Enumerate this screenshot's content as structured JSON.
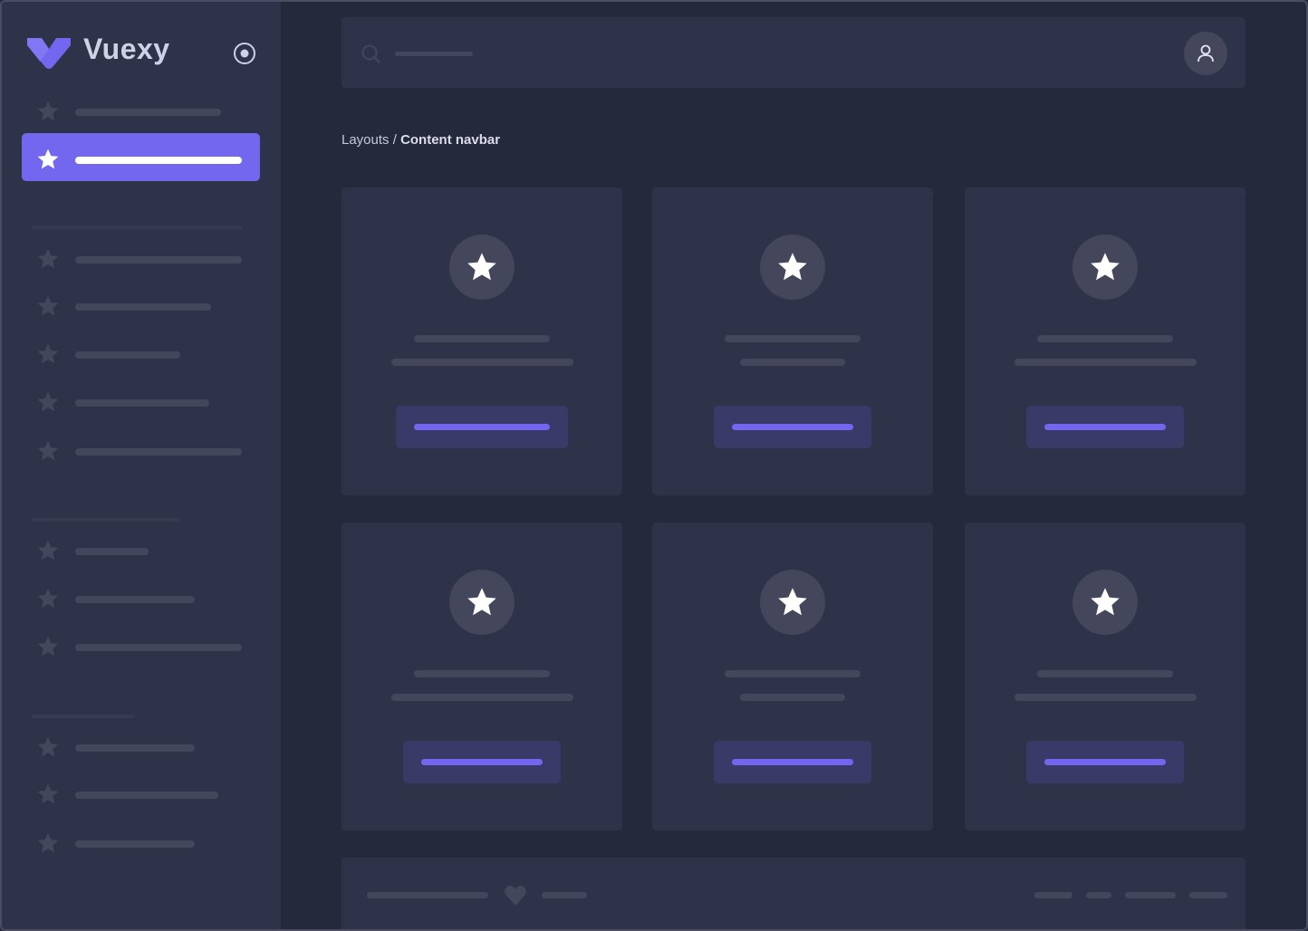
{
  "sidebar": {
    "brand": "Vuexy",
    "logo_icon": "vuexy-logo",
    "toggle_icon": "radio-circle-icon",
    "nav_icon": "star-icon",
    "active_index": 1
  },
  "header": {
    "search_icon": "search-icon",
    "avatar_icon": "user-icon"
  },
  "breadcrumb": {
    "parent": "Layouts",
    "separator": " / ",
    "current": "Content navbar"
  },
  "cards": [
    {
      "icon": "star-icon"
    },
    {
      "icon": "star-icon"
    },
    {
      "icon": "star-icon"
    },
    {
      "icon": "star-icon"
    },
    {
      "icon": "star-icon"
    },
    {
      "icon": "star-icon"
    }
  ],
  "footer": {
    "icon": "heart-icon"
  },
  "colors": {
    "primary": "#7367F0",
    "background": "#25293C",
    "surface": "#2F3349",
    "placeholder": "#44475B"
  }
}
